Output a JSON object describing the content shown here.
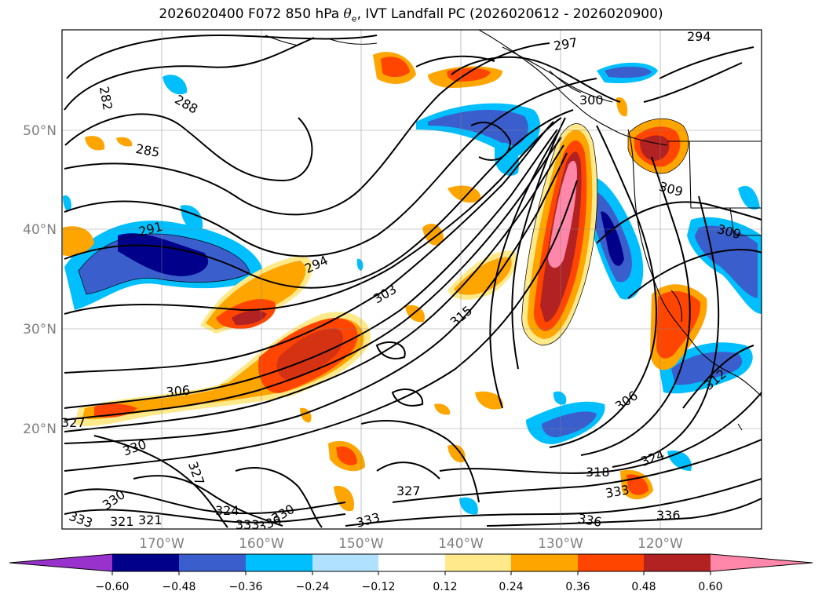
{
  "title": {
    "prefix": "2026020400 F072 850 hPa ",
    "theta": "θ",
    "theta_sub": "e",
    "suffix": ", IVT Landfall PC (2026020612 - 2026020900)"
  },
  "map": {
    "region": "North Pacific",
    "projection": "PlateCarree",
    "lat_labels": [
      "50°N",
      "40°N",
      "30°N",
      "20°N"
    ],
    "lon_labels": [
      "170°W",
      "160°W",
      "150°W",
      "140°W",
      "130°W",
      "120°W"
    ],
    "contour_labels": [
      "282",
      "288",
      "285",
      "291",
      "294",
      "294",
      "297",
      "300",
      "303",
      "315",
      "306",
      "309",
      "309",
      "306",
      "327",
      "330",
      "327",
      "330",
      "324",
      "321",
      "333",
      "336",
      "330",
      "333",
      "327",
      "318",
      "333",
      "336",
      "336",
      "324",
      "333",
      "321",
      "312"
    ]
  },
  "colorbar": {
    "ticks": [
      "−0.60",
      "−0.48",
      "−0.36",
      "−0.24",
      "−0.12",
      "0.12",
      "0.24",
      "0.36",
      "0.48",
      "0.60"
    ],
    "colors": [
      "#9932cc",
      "#00008b",
      "#3a5fcd",
      "#00bfff",
      "#b0e2ff",
      "#ffffff",
      "#ffe98a",
      "#ffa500",
      "#ff4500",
      "#b22222",
      "#ff88aa"
    ]
  }
}
